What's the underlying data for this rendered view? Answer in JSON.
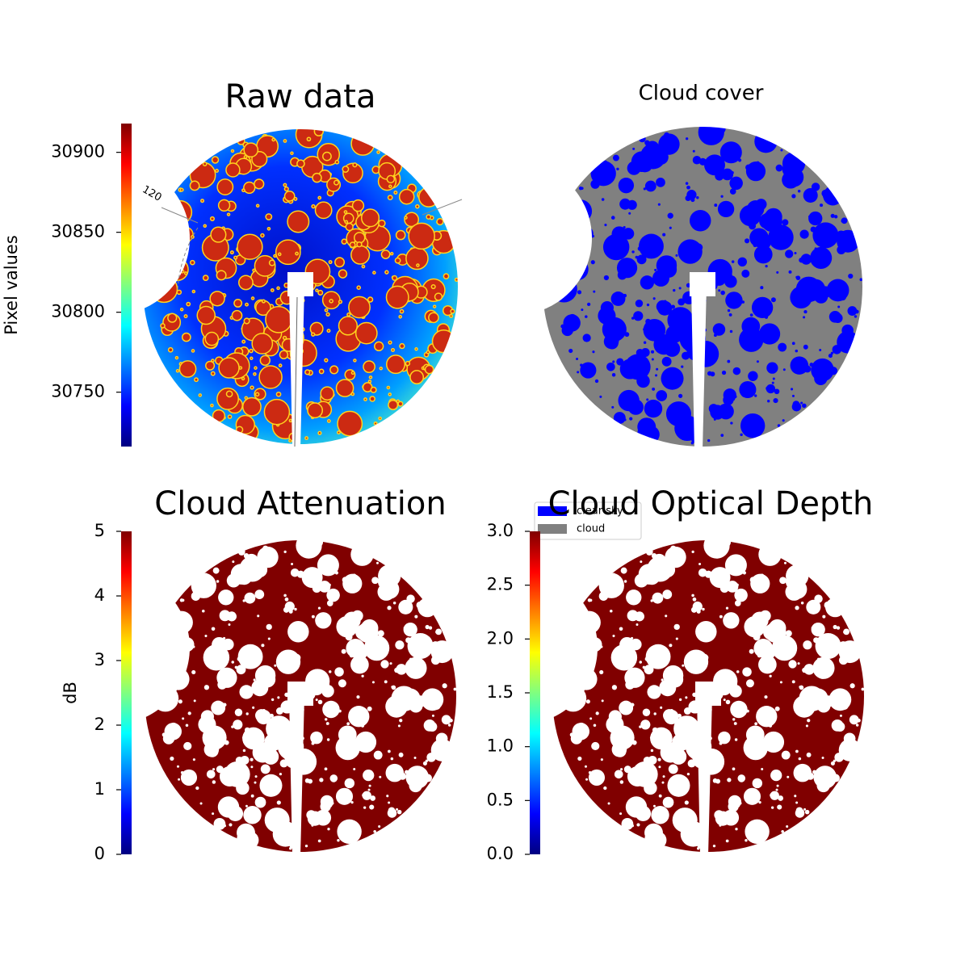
{
  "chart_data": [
    {
      "type": "image",
      "title": "Raw data",
      "colormap": "jet",
      "clabel": "Pixel values",
      "clim": [
        30716,
        30918
      ],
      "cticks": [
        30750,
        30800,
        30850,
        30900
      ],
      "annotation": "120"
    },
    {
      "type": "image",
      "title": "Cloud cover",
      "series": [
        {
          "name": "clear sky",
          "color": "#0000ff"
        },
        {
          "name": "cloud",
          "color": "#808080"
        }
      ]
    },
    {
      "type": "image",
      "title": "Cloud Attenuation",
      "colormap": "jet",
      "clabel": "dB",
      "clim": [
        0,
        5
      ],
      "cticks": [
        0,
        1,
        2,
        3,
        4,
        5
      ]
    },
    {
      "type": "image",
      "title": "Cloud Optical Depth",
      "colormap": "jet",
      "clim": [
        0,
        3
      ],
      "cticks": [
        {
          "value": 0,
          "label": "0.0"
        },
        0.5,
        {
          "value": 1,
          "label": "1.0"
        },
        1.5,
        {
          "value": 2,
          "label": "2.0"
        },
        2.5,
        {
          "value": 3,
          "label": "3.0"
        }
      ]
    }
  ]
}
